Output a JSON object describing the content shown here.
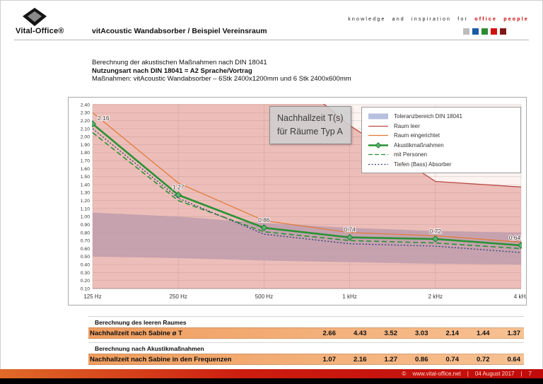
{
  "header": {
    "logo_text": "Vital-Office®",
    "doc_title": "vitAcoustic Wandabsorber / Beispiel Vereinsraum",
    "tagline_plain": "knowledge and inspiration for",
    "tagline_accent": "office people",
    "accent_color": "#cc0000",
    "brand_squares": [
      "#bcbcbc",
      "#1b5aa5",
      "#2f8a32",
      "#cf1211",
      "#7e1a16"
    ]
  },
  "intro": {
    "line1": "Berechnung der akustischen Maßnahmen nach DIN 18041",
    "line2": "Nutzungsart nach DIN 18041 = A2 Sprache/Vortrag",
    "line3": "Maßnahmen: vitAcoustic Wandabsorber – 6Stk 2400x1200mm und 6 Stk 2400x600mm"
  },
  "chart_overlay": {
    "line1": "Nachhallzeit T(s)",
    "line2": "für Räume Typ A"
  },
  "chart_data": {
    "type": "line",
    "title": "Nachhallzeit T(s) für Räume Typ A",
    "categories": [
      "125 Hz",
      "250 Hz",
      "500 Hz",
      "1 kHz",
      "2 kHz",
      "4 kHz"
    ],
    "ylim": [
      0.1,
      2.4
    ],
    "ytick_step": 0.1,
    "grid": true,
    "legend_position": "top-right",
    "band": {
      "name": "Toleranzbereich DIN 18041",
      "upper": [
        1.05,
        1.0,
        0.92,
        0.86,
        0.82,
        0.8
      ],
      "lower": [
        0.5,
        0.48,
        0.45,
        0.43,
        0.41,
        0.4
      ],
      "color": "#b7c0df"
    },
    "series": [
      {
        "name": "Raum leer",
        "values": [
          4.43,
          3.52,
          3.03,
          2.14,
          1.44,
          1.37
        ],
        "color": "#b94a45",
        "style": "solid",
        "area_fill": "rgba(205,92,80,0.35)"
      },
      {
        "name": "Raum eingerichtet",
        "values": [
          2.3,
          1.42,
          0.95,
          0.8,
          0.76,
          0.68
        ],
        "color": "#e07b39",
        "style": "solid"
      },
      {
        "name": "Akustikmaßnahmen",
        "values": [
          2.16,
          1.27,
          0.86,
          0.74,
          0.72,
          0.64
        ],
        "color": "#2a9235",
        "style": "solid",
        "markers": "diamond",
        "data_labels": true
      },
      {
        "name": "mit Personen",
        "values": [
          2.05,
          1.2,
          0.81,
          0.7,
          0.67,
          0.6
        ],
        "color": "#2a9235",
        "style": "dashed"
      },
      {
        "name": "Tiefen (Bass) Absorber",
        "values": [
          2.1,
          1.23,
          0.78,
          0.66,
          0.63,
          0.55
        ],
        "color": "#2d3f76",
        "style": "dotted"
      }
    ]
  },
  "tables": {
    "section1_title": "Berechnung des leeren Raumes",
    "row1_label": "Nachhallzeit nach Sabine ø T",
    "row1_values": [
      "2.66",
      "4.43",
      "3.52",
      "3.03",
      "2.14",
      "1.44",
      "1.37"
    ],
    "section2_title": "Berechnung nach Akustikmaßnahmen",
    "row2_label": "Nachhallzeit nach Sabine in den Frequenzen",
    "row2_values": [
      "1.07",
      "2.16",
      "1.27",
      "0.86",
      "0.74",
      "0.72",
      "0.64"
    ]
  },
  "footer": {
    "copyright_symbol": "©",
    "site": "www.vital-office.net",
    "separator": "|",
    "date": "04 August 2017",
    "page_number": "7",
    "bar_color_left": "#e06a28",
    "bar_color_right": "#c00b0b"
  }
}
